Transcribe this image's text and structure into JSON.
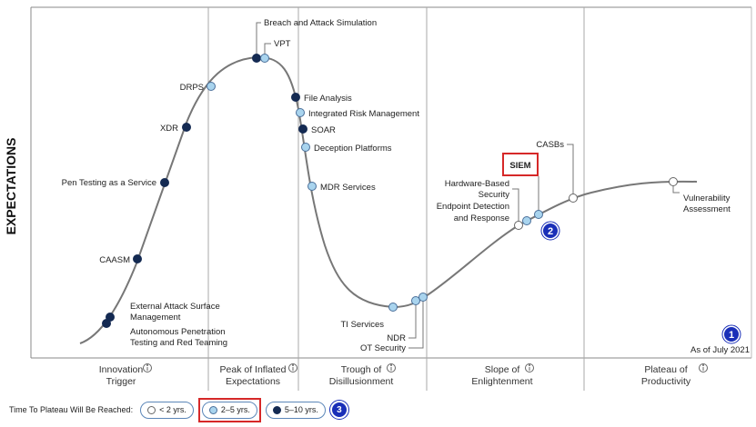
{
  "chart_data": {
    "type": "hype-cycle",
    "ylabel": "EXPECTATIONS",
    "as_of": "As of July 2021",
    "phases": [
      {
        "name": "Innovation Trigger",
        "lines": [
          "Innovation",
          "Trigger"
        ]
      },
      {
        "name": "Peak of Inflated Expectations",
        "lines": [
          "Peak of Inflated",
          "Expectations"
        ]
      },
      {
        "name": "Trough of Disillusionment",
        "lines": [
          "Trough of",
          "Disillusionment"
        ]
      },
      {
        "name": "Slope of Enlightenment",
        "lines": [
          "Slope of",
          "Enlightenment"
        ]
      },
      {
        "name": "Plateau of Productivity",
        "lines": [
          "Plateau of",
          "Productivity"
        ]
      }
    ],
    "legend": {
      "title": "Time To Plateau Will Be Reached:",
      "items": [
        {
          "label": "< 2 yrs.",
          "category": "lt2"
        },
        {
          "label": "2–5 yrs.",
          "category": "2to5",
          "highlighted": true
        },
        {
          "label": "5–10 yrs.",
          "category": "5to10"
        }
      ]
    },
    "category_colors": {
      "lt2": "#ffffff",
      "2to5": "#a9d4ee",
      "5to10": "#142a52"
    },
    "technologies": [
      {
        "name": "Autonomous Penetration Testing and Red Teaming",
        "lines": [
          "Autonomous Penetration",
          "Testing and Red Teaming"
        ],
        "phase": "Innovation Trigger",
        "category": "5to10"
      },
      {
        "name": "External Attack Surface Management",
        "lines": [
          "External Attack Surface",
          "Management"
        ],
        "phase": "Innovation Trigger",
        "category": "5to10"
      },
      {
        "name": "CAASM",
        "lines": [
          "CAASM"
        ],
        "phase": "Innovation Trigger",
        "category": "5to10"
      },
      {
        "name": "Pen Testing as a Service",
        "lines": [
          "Pen Testing as a Service"
        ],
        "phase": "Innovation Trigger",
        "category": "5to10"
      },
      {
        "name": "XDR",
        "lines": [
          "XDR"
        ],
        "phase": "Innovation Trigger",
        "category": "5to10"
      },
      {
        "name": "DRPS",
        "lines": [
          "DRPS"
        ],
        "phase": "Peak of Inflated Expectations",
        "category": "2to5"
      },
      {
        "name": "Breach and Attack Simulation",
        "lines": [
          "Breach and Attack Simulation"
        ],
        "phase": "Peak of Inflated Expectations",
        "category": "5to10"
      },
      {
        "name": "VPT",
        "lines": [
          "VPT"
        ],
        "phase": "Peak of Inflated Expectations",
        "category": "2to5"
      },
      {
        "name": "File Analysis",
        "lines": [
          "File Analysis"
        ],
        "phase": "Trough of Disillusionment",
        "category": "5to10"
      },
      {
        "name": "Integrated Risk Management",
        "lines": [
          "Integrated Risk Management"
        ],
        "phase": "Trough of Disillusionment",
        "category": "2to5"
      },
      {
        "name": "SOAR",
        "lines": [
          "SOAR"
        ],
        "phase": "Trough of Disillusionment",
        "category": "5to10"
      },
      {
        "name": "Deception Platforms",
        "lines": [
          "Deception Platforms"
        ],
        "phase": "Trough of Disillusionment",
        "category": "2to5"
      },
      {
        "name": "MDR Services",
        "lines": [
          "MDR Services"
        ],
        "phase": "Trough of Disillusionment",
        "category": "2to5"
      },
      {
        "name": "TI Services",
        "lines": [
          "TI Services"
        ],
        "phase": "Trough of Disillusionment",
        "category": "2to5"
      },
      {
        "name": "NDR",
        "lines": [
          "NDR"
        ],
        "phase": "Trough of Disillusionment",
        "category": "2to5"
      },
      {
        "name": "OT Security",
        "lines": [
          "OT Security"
        ],
        "phase": "Trough of Disillusionment",
        "category": "2to5"
      },
      {
        "name": "Endpoint Detection and Response",
        "lines": [
          "Endpoint Detection",
          "and Response"
        ],
        "phase": "Slope of Enlightenment",
        "category": "lt2"
      },
      {
        "name": "Hardware-Based Security",
        "lines": [
          "Hardware-Based",
          "Security"
        ],
        "phase": "Slope of Enlightenment",
        "category": "2to5"
      },
      {
        "name": "SIEM",
        "lines": [
          "SIEM"
        ],
        "phase": "Slope of Enlightenment",
        "category": "2to5",
        "highlighted": true
      },
      {
        "name": "CASBs",
        "lines": [
          "CASBs"
        ],
        "phase": "Slope of Enlightenment",
        "category": "lt2"
      },
      {
        "name": "Vulnerability Assessment",
        "lines": [
          "Vulnerability",
          "Assessment"
        ],
        "phase": "Plateau of Productivity",
        "category": "lt2"
      }
    ],
    "callouts": [
      "1",
      "2",
      "3"
    ]
  }
}
